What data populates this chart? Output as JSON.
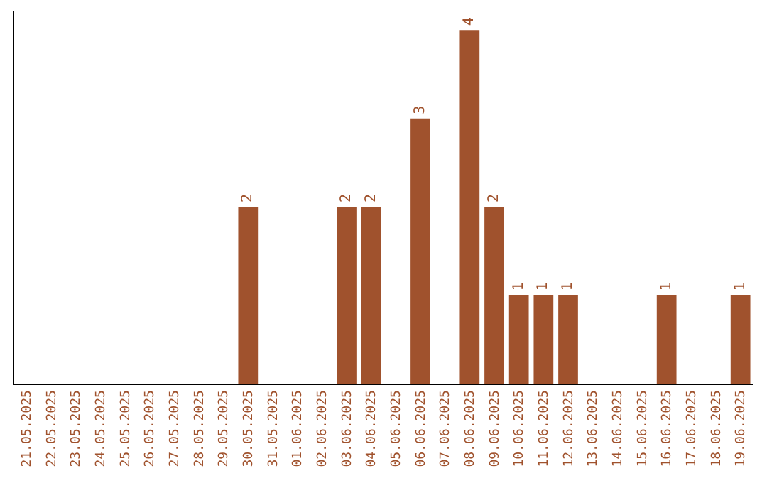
{
  "chart_data": {
    "type": "bar",
    "categories": [
      "21.05.2025",
      "22.05.2025",
      "23.05.2025",
      "24.05.2025",
      "25.05.2025",
      "26.05.2025",
      "27.05.2025",
      "28.05.2025",
      "29.05.2025",
      "30.05.2025",
      "31.05.2025",
      "01.06.2025",
      "02.06.2025",
      "03.06.2025",
      "04.06.2025",
      "05.06.2025",
      "06.06.2025",
      "07.06.2025",
      "08.06.2025",
      "09.06.2025",
      "10.06.2025",
      "11.06.2025",
      "12.06.2025",
      "13.06.2025",
      "14.06.2025",
      "15.06.2025",
      "16.06.2025",
      "17.06.2025",
      "18.06.2025",
      "19.06.2025"
    ],
    "values": [
      0,
      0,
      0,
      0,
      0,
      0,
      0,
      0,
      0,
      2,
      0,
      0,
      0,
      2,
      2,
      0,
      3,
      0,
      4,
      2,
      1,
      1,
      1,
      0,
      0,
      0,
      1,
      0,
      0,
      1
    ],
    "value_labels": [
      null,
      null,
      null,
      null,
      null,
      null,
      null,
      null,
      null,
      "2",
      null,
      null,
      null,
      "2",
      "2",
      null,
      "3",
      null,
      "4",
      "2",
      "1",
      "1",
      "1",
      null,
      null,
      null,
      "1",
      null,
      null,
      "1"
    ],
    "color": "#a0522d",
    "tick_labels": "x"
  }
}
